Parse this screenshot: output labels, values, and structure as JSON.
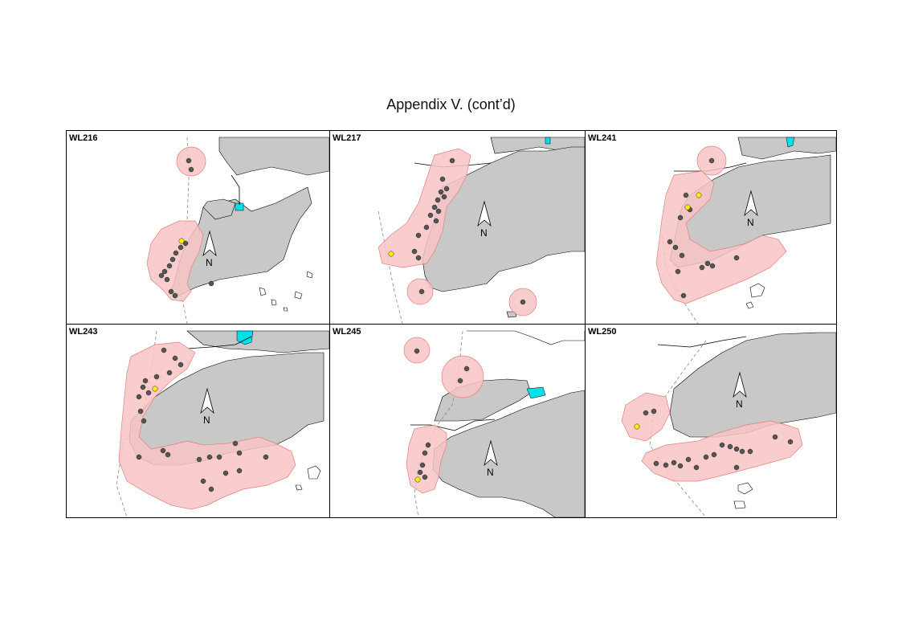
{
  "page": {
    "title": "Appendix V.  (cont’d)"
  },
  "north_label": "N",
  "colors": {
    "land": "#c8c8c8",
    "buffer": "#f8c4c4",
    "buffer_stroke": "#e08080",
    "point": "#555555",
    "highlight_point": "#ffee00",
    "water_feature": "#00e0e8",
    "boundary": "#888888"
  },
  "panels": [
    {
      "id": "WL216",
      "label": "WL216"
    },
    {
      "id": "WL217",
      "label": "WL217"
    },
    {
      "id": "WL241",
      "label": "WL241"
    },
    {
      "id": "WL243",
      "label": "WL243"
    },
    {
      "id": "WL245",
      "label": "WL245"
    },
    {
      "id": "WL250",
      "label": "WL250"
    }
  ]
}
